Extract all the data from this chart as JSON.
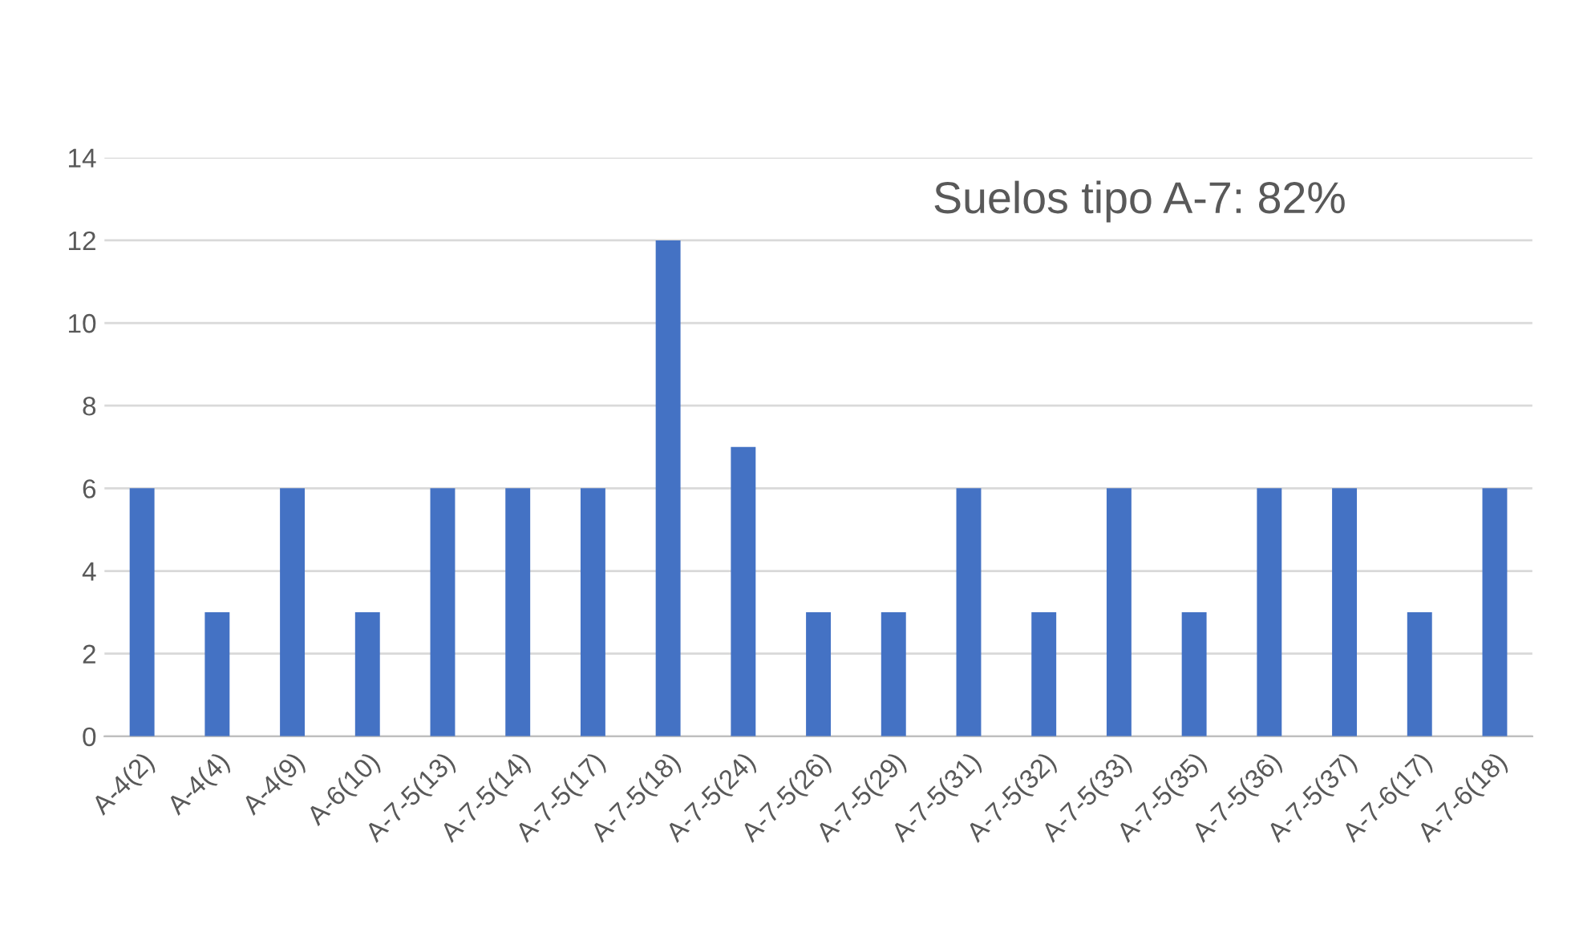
{
  "chart_data": {
    "type": "bar",
    "categories": [
      "A-4(2)",
      "A-4(4)",
      "A-4(9)",
      "A-6(10)",
      "A-7-5(13)",
      "A-7-5(14)",
      "A-7-5(17)",
      "A-7-5(18)",
      "A-7-5(24)",
      "A-7-5(26)",
      "A-7-5(29)",
      "A-7-5(31)",
      "A-7-5(32)",
      "A-7-5(33)",
      "A-7-5(35)",
      "A-7-5(36)",
      "A-7-5(37)",
      "A-7-6(17)",
      "A-7-6(18)"
    ],
    "values": [
      6,
      3,
      6,
      3,
      6,
      6,
      6,
      12,
      7,
      3,
      3,
      6,
      3,
      6,
      3,
      6,
      6,
      3,
      6
    ],
    "color": "#4472c4",
    "ylim": [
      0,
      14
    ],
    "yticks": [
      0,
      2,
      4,
      6,
      8,
      10,
      12,
      14
    ],
    "grid": "y",
    "annotations": [
      "Suelos tipo A-7: 82%"
    ]
  }
}
